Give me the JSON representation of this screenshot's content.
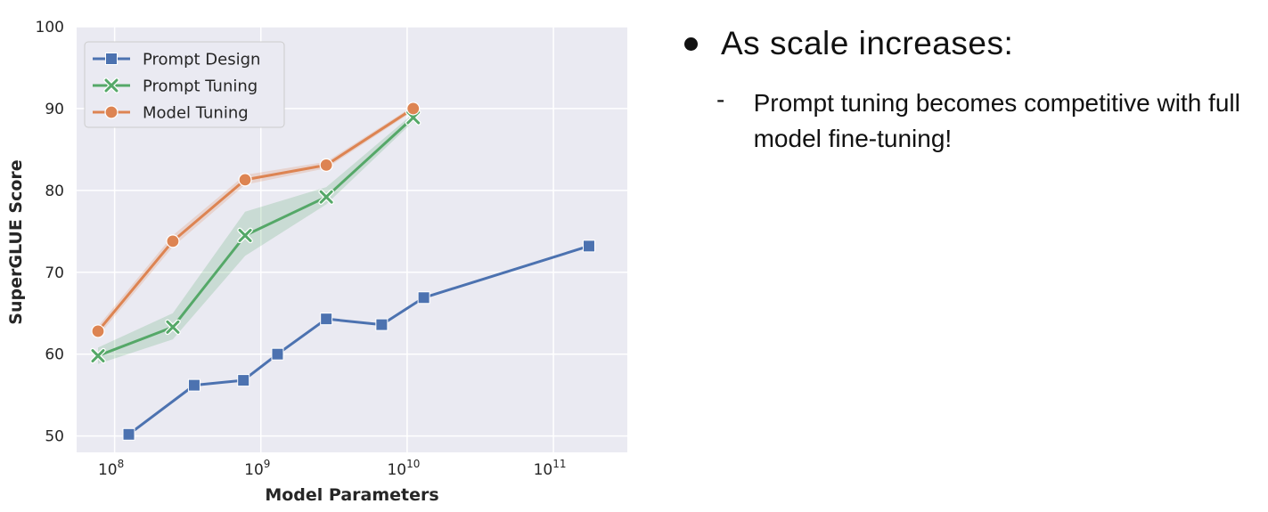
{
  "chart_data": {
    "type": "line",
    "xlabel": "Model Parameters",
    "ylabel": "SuperGLUE Score",
    "xscale": "log",
    "xlim": [
      55000000,
      320000000000
    ],
    "ylim": [
      48,
      100
    ],
    "yticks": [
      50,
      60,
      70,
      80,
      90,
      100
    ],
    "xticks": [
      {
        "value": 100000000,
        "base": "10",
        "exp": "8"
      },
      {
        "value": 1000000000,
        "base": "10",
        "exp": "9"
      },
      {
        "value": 10000000000,
        "base": "10",
        "exp": "10"
      },
      {
        "value": 100000000000,
        "base": "10",
        "exp": "11"
      }
    ],
    "grid": true,
    "legend_position": "top-left",
    "series": [
      {
        "name": "Prompt Design",
        "color": "#4c72b0",
        "marker": "square",
        "x": [
          125000000,
          350000000,
          760000000,
          1300000000,
          2800000000,
          6700000000,
          13000000000,
          175000000000
        ],
        "y": [
          50.2,
          56.2,
          56.8,
          60.0,
          64.3,
          63.6,
          66.9,
          73.2
        ]
      },
      {
        "name": "Prompt Tuning",
        "color": "#55a868",
        "marker": "x",
        "x": [
          77000000,
          250000000,
          780000000,
          2800000000,
          11000000000
        ],
        "y": [
          59.8,
          63.3,
          74.5,
          79.2,
          88.9
        ],
        "band_low": [
          58.8,
          61.8,
          72.0,
          78.3,
          88.4
        ],
        "band_high": [
          60.8,
          65.0,
          77.4,
          80.4,
          89.4
        ]
      },
      {
        "name": "Model Tuning",
        "color": "#dd8452",
        "marker": "circle",
        "x": [
          77000000,
          250000000,
          780000000,
          2800000000,
          11000000000
        ],
        "y": [
          62.8,
          73.8,
          81.3,
          83.1,
          90.0
        ],
        "band_low": [
          62.2,
          73.1,
          80.7,
          82.7,
          89.7
        ],
        "band_high": [
          63.4,
          74.5,
          81.9,
          83.5,
          90.3
        ]
      }
    ]
  },
  "text": {
    "bullet": "As scale increases:",
    "dash": "-",
    "sub": "Prompt tuning becomes competitive with full model fine-tuning!"
  }
}
